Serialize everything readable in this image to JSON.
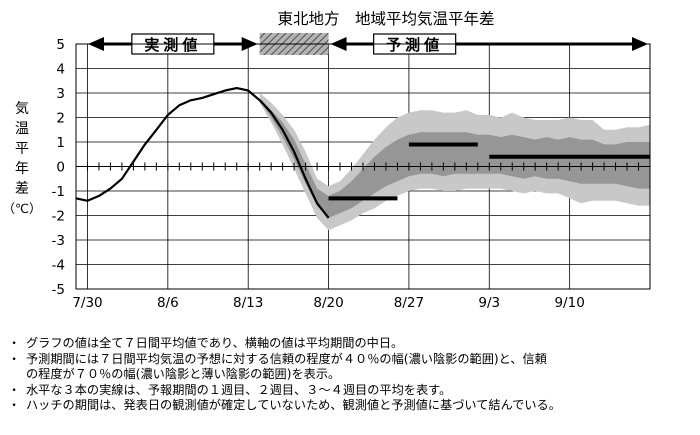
{
  "chart_data": {
    "type": "line",
    "title": "東北地方　地域平均気温平年差",
    "ylabel": "気温平年差（℃）",
    "ylabel_chars": [
      "気",
      "温",
      "平",
      "年",
      "差",
      "（℃）"
    ],
    "ylim": [
      -5,
      5
    ],
    "yticks": [
      5,
      4,
      3,
      2,
      1,
      0,
      -1,
      -2,
      -3,
      -4,
      -5
    ],
    "grid": true,
    "xlim": [
      0,
      50
    ],
    "xtick_labels": [
      {
        "x": 1,
        "label": "7/30"
      },
      {
        "x": 8,
        "label": "8/6"
      },
      {
        "x": 15,
        "label": "8/13"
      },
      {
        "x": 22,
        "label": "8/20"
      },
      {
        "x": 29,
        "label": "8/27"
      },
      {
        "x": 36,
        "label": "9/3"
      },
      {
        "x": 43,
        "label": "9/10"
      }
    ],
    "period_labels": {
      "observed": "実測値",
      "forecast": "予測値"
    },
    "hatch_range": [
      16,
      22
    ],
    "observed": {
      "x": [
        0,
        1,
        2,
        3,
        4,
        5,
        6,
        7,
        8,
        9,
        10,
        11,
        12,
        13,
        14,
        15,
        16
      ],
      "y": [
        -1.3,
        -1.4,
        -1.2,
        -0.9,
        -0.5,
        0.2,
        0.9,
        1.5,
        2.1,
        2.5,
        2.7,
        2.8,
        2.95,
        3.1,
        3.2,
        3.1,
        2.7
      ]
    },
    "linked_line": {
      "x": [
        16,
        17,
        18,
        19,
        20,
        21,
        22
      ],
      "y": [
        2.7,
        2.2,
        1.5,
        0.6,
        -0.5,
        -1.5,
        -2.1
      ]
    },
    "band70": {
      "x": [
        16,
        17,
        18,
        19,
        20,
        21,
        22,
        23,
        24,
        25,
        26,
        27,
        28,
        29,
        30,
        31,
        32,
        33,
        34,
        35,
        36,
        37,
        38,
        39,
        40,
        41,
        42,
        43,
        44,
        45,
        46,
        47,
        48,
        49,
        50
      ],
      "upper": [
        3.0,
        2.6,
        2.1,
        1.5,
        0.6,
        -0.5,
        -0.8,
        -0.6,
        -0.1,
        0.5,
        1.1,
        1.6,
        2.0,
        2.2,
        2.3,
        2.3,
        2.2,
        2.2,
        2.3,
        2.1,
        2.1,
        2.0,
        2.2,
        2.0,
        1.9,
        1.9,
        1.9,
        2.0,
        1.9,
        1.9,
        1.5,
        1.5,
        1.6,
        1.6,
        1.7
      ],
      "lower": [
        2.6,
        1.8,
        0.9,
        -0.1,
        -1.1,
        -2.1,
        -2.6,
        -2.4,
        -2.2,
        -1.9,
        -1.7,
        -1.4,
        -1.2,
        -1.0,
        -0.9,
        -0.9,
        -1.0,
        -1.0,
        -0.9,
        -0.9,
        -0.9,
        -0.9,
        -1.0,
        -1.1,
        -1.0,
        -1.1,
        -1.1,
        -1.3,
        -1.5,
        -1.4,
        -1.4,
        -1.4,
        -1.5,
        -1.6,
        -1.6
      ]
    },
    "band40": {
      "x": [
        16,
        17,
        18,
        19,
        20,
        21,
        22,
        23,
        24,
        25,
        26,
        27,
        28,
        29,
        30,
        31,
        32,
        33,
        34,
        35,
        36,
        37,
        38,
        39,
        40,
        41,
        42,
        43,
        44,
        45,
        46,
        47,
        48,
        49,
        50
      ],
      "upper": [
        2.8,
        2.3,
        1.8,
        1.1,
        0.1,
        -0.9,
        -1.2,
        -1.0,
        -0.6,
        -0.1,
        0.4,
        0.8,
        1.1,
        1.3,
        1.4,
        1.4,
        1.4,
        1.4,
        1.4,
        1.3,
        1.3,
        1.2,
        1.3,
        1.2,
        1.1,
        1.2,
        1.1,
        1.2,
        1.1,
        1.1,
        0.9,
        0.9,
        1.0,
        1.0,
        1.0
      ],
      "lower": [
        2.7,
        2.0,
        1.2,
        0.3,
        -0.7,
        -1.6,
        -2.1,
        -1.9,
        -1.7,
        -1.4,
        -1.1,
        -0.8,
        -0.6,
        -0.4,
        -0.3,
        -0.3,
        -0.4,
        -0.3,
        -0.3,
        -0.3,
        -0.3,
        -0.3,
        -0.4,
        -0.5,
        -0.4,
        -0.5,
        -0.5,
        -0.6,
        -0.7,
        -0.7,
        -0.7,
        -0.7,
        -0.8,
        -0.9,
        -0.9
      ]
    },
    "forecast_bars": [
      {
        "label": "1週目",
        "x0": 22,
        "x1": 28,
        "y": -1.3
      },
      {
        "label": "2週目",
        "x0": 29,
        "x1": 35,
        "y": 0.9
      },
      {
        "label": "3～4週目",
        "x0": 36,
        "x1": 50,
        "y": 0.4
      }
    ],
    "colors": {
      "band70": "#c8c8c8",
      "band40": "#969696",
      "line": "#000000",
      "grid": "#000000"
    }
  },
  "notes": [
    "グラフの値は全て７日間平均値であり、横軸の値は平均期間の中日。",
    "予測期間には７日間平均気温の予想に対する信頼の程度が４０％の幅(濃い陰影の範囲)と、信頼",
    "の程度が７０％の幅(濃い陰影と薄い陰影の範囲)を表示。",
    "水平な３本の実線は、予報期間の１週目、２週目、３～４週目の平均を表す。",
    "ハッチの期間は、発表日の観測値が確定していないため、観測値と予測値に基づいて結んでいる。"
  ],
  "note_bullet": "・"
}
